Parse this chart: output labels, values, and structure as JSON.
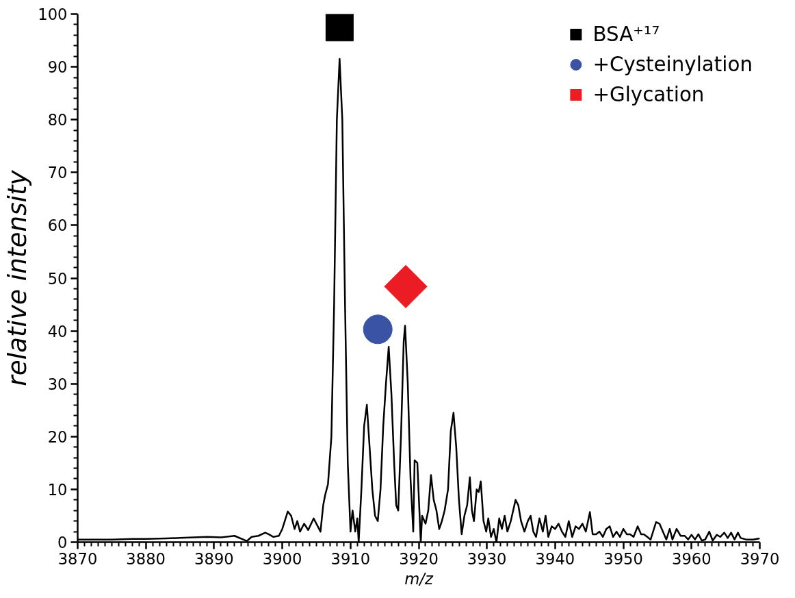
{
  "chart_data": {
    "type": "line",
    "xlabel": "m/z",
    "ylabel": "relative intensity",
    "xlim": [
      3870,
      3970
    ],
    "xticks": [
      3870,
      3880,
      3890,
      3900,
      3910,
      3920,
      3930,
      3940,
      3950,
      3960,
      3970
    ],
    "ylim": [
      0,
      100
    ],
    "yticks": [
      0,
      10,
      20,
      30,
      40,
      50,
      60,
      70,
      80,
      90,
      100
    ],
    "grid": false,
    "legend": "top right",
    "series": [
      {
        "color": "#000000",
        "line_style": "solid",
        "x": [
          3870,
          3872,
          3875,
          3878,
          3880,
          3883,
          3885,
          3887,
          3889,
          3891,
          3893,
          3894.8,
          3895.5,
          3896.5,
          3897.5,
          3898,
          3898.7,
          3899.5,
          3900,
          3900.8,
          3901.3,
          3901.8,
          3902.2,
          3902.6,
          3903.2,
          3903.8,
          3904.6,
          3905.2,
          3905.6,
          3906,
          3906.3,
          3906.7,
          3907.2,
          3907.6,
          3908,
          3908.4,
          3908.8,
          3909.2,
          3909.6,
          3910,
          3910.3,
          3910.7,
          3911,
          3911.2,
          3911.6,
          3912,
          3912.4,
          3912.8,
          3913.2,
          3913.6,
          3914,
          3914.4,
          3914.8,
          3915.2,
          3915.6,
          3916,
          3916.4,
          3916.7,
          3917,
          3917.4,
          3917.8,
          3918,
          3918.4,
          3918.8,
          3919.2,
          3919.4,
          3919.8,
          3920.1,
          3920.3,
          3920.5,
          3921,
          3921.4,
          3921.8,
          3922.2,
          3922.6,
          3923,
          3923.4,
          3923.8,
          3924.3,
          3924.7,
          3925.1,
          3925.5,
          3925.9,
          3926.3,
          3926.7,
          3927.1,
          3927.5,
          3927.8,
          3928.1,
          3928.5,
          3928.8,
          3929.1,
          3929.5,
          3929.9,
          3930.2,
          3930.6,
          3931,
          3931.4,
          3931.8,
          3932.2,
          3932.6,
          3933,
          3933.5,
          3934.2,
          3934.6,
          3935,
          3935.5,
          3936,
          3936.4,
          3936.8,
          3937.2,
          3937.7,
          3938.2,
          3938.6,
          3939,
          3939.5,
          3940,
          3940.5,
          3941,
          3941.5,
          3942,
          3942.5,
          3943,
          3943.5,
          3944,
          3944.5,
          3945.1,
          3945.5,
          3946,
          3946.5,
          3947,
          3947.5,
          3948,
          3948.5,
          3949,
          3949.5,
          3950,
          3950.5,
          3951,
          3951.5,
          3952.1,
          3952.6,
          3953,
          3953.5,
          3954,
          3954.8,
          3955.3,
          3955.8,
          3956.3,
          3956.8,
          3957.2,
          3957.8,
          3958.4,
          3959,
          3959.5,
          3960,
          3960.5,
          3961,
          3961.5,
          3962,
          3962.6,
          3963.1,
          3963.7,
          3964.2,
          3964.8,
          3965.3,
          3965.8,
          3966.3,
          3966.8,
          3967.2,
          3968,
          3969,
          3970
        ],
        "values": [
          0.5,
          0.5,
          0.5,
          0.6,
          0.6,
          0.7,
          0.8,
          0.9,
          1.0,
          0.9,
          1.2,
          0.2,
          1.0,
          1.2,
          1.8,
          1.5,
          1.0,
          1.2,
          2.5,
          5.8,
          5.0,
          2.5,
          4.0,
          2.0,
          3.5,
          2.3,
          4.5,
          3.0,
          2.0,
          7.0,
          9.0,
          11,
          20,
          45,
          80,
          91.5,
          80,
          45,
          15,
          2,
          6,
          2,
          4.5,
          0,
          10,
          22,
          26,
          18,
          10,
          5,
          4,
          10,
          22,
          30,
          37,
          28,
          15,
          7,
          6,
          20,
          38,
          41,
          30,
          12,
          2,
          15.5,
          15,
          6,
          0,
          5,
          3.5,
          6,
          12.7,
          8,
          6,
          2.5,
          4,
          6,
          10,
          21,
          24.5,
          18,
          8,
          1.5,
          5,
          7,
          12.3,
          6,
          4,
          10,
          9.5,
          11.5,
          4,
          2,
          4.5,
          1,
          2.5,
          0,
          4.5,
          2.5,
          5,
          2,
          4,
          8,
          7,
          4,
          2,
          4,
          5,
          2,
          1,
          4.5,
          2,
          5,
          1,
          3,
          2.5,
          3.5,
          2,
          1,
          4,
          1,
          3,
          2.5,
          3.5,
          2,
          5.7,
          1.5,
          1.5,
          2,
          1,
          2.5,
          3,
          1,
          2,
          1,
          2.5,
          1.5,
          1.5,
          1,
          3,
          1.5,
          1.5,
          1,
          0.5,
          3.8,
          3.5,
          2,
          0.5,
          2.5,
          0.5,
          2.5,
          1.2,
          1.2,
          0.5,
          1.4,
          0.5,
          1.5,
          0.3,
          0.5,
          2,
          0.3,
          1.4,
          1,
          1.8,
          0.8,
          1.8,
          0.5,
          1.8,
          0.8,
          0.5,
          0.5,
          0.7
        ]
      },
      {
        "type": "scatter",
        "name": "BSA⁺¹⁷",
        "color": "#000000",
        "marker": "square",
        "x": [
          3908.4
        ],
        "values": [
          97.5
        ]
      },
      {
        "type": "scatter",
        "name": "+Cysteinylation",
        "color": "#3a53a4",
        "marker": "circle",
        "x": [
          3914.0
        ],
        "values": [
          40.3
        ]
      },
      {
        "type": "scatter",
        "name": "+Glycation",
        "color": "#ec1c24",
        "marker": "diamond",
        "x": [
          3918.1
        ],
        "values": [
          48.4
        ]
      }
    ]
  }
}
